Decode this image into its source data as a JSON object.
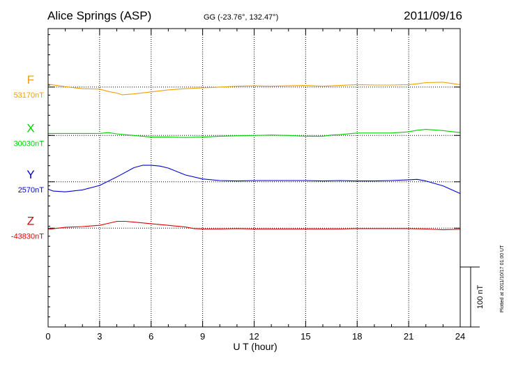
{
  "header": {
    "station": "Alice Springs (ASP)",
    "coords": "GG (-23.76°, 132.47°)",
    "date": "2011/09/16"
  },
  "footer": {
    "plotted": "Plotted at 2011/10/17 01:00 UT"
  },
  "chart_data": {
    "type": "line",
    "xlabel": "U T (hour)",
    "xlim": [
      0,
      24
    ],
    "xticks": [
      0,
      3,
      6,
      9,
      12,
      15,
      18,
      21,
      24
    ],
    "x_minor_step": 1,
    "grid": true,
    "scale": {
      "label": "100 nT",
      "nT": 100
    },
    "y_range_nT": [
      -195,
      545
    ],
    "series": [
      {
        "name": "F",
        "baseline_label": "53170nT",
        "baseline_nT": 53170,
        "offset_nT": 400,
        "color": "#f0a000",
        "x": [
          0,
          1,
          2,
          3,
          3.5,
          4,
          4.3,
          5,
          6,
          7,
          8,
          9,
          10,
          11,
          12,
          13,
          14,
          15,
          16,
          17,
          18,
          19,
          20,
          21,
          21.5,
          22,
          23,
          24
        ],
        "y": [
          53177,
          53171,
          53166,
          53165,
          53159,
          53155,
          53151,
          53153,
          53158,
          53163,
          53166,
          53168,
          53170,
          53172,
          53173,
          53172,
          53173,
          53174,
          53172,
          53174,
          53176,
          53175,
          53175,
          53176,
          53178,
          53181,
          53182,
          53176
        ]
      },
      {
        "name": "X",
        "baseline_label": "30030nT",
        "baseline_nT": 30030,
        "offset_nT": 280,
        "color": "#00d000",
        "x": [
          0,
          1,
          2,
          3,
          3.5,
          4,
          5,
          6,
          7,
          8,
          9,
          10,
          11,
          12,
          13,
          14,
          15,
          16,
          16.5,
          17,
          18,
          19,
          20,
          21,
          21.5,
          22,
          23,
          24
        ],
        "y": [
          30035,
          30035,
          30035,
          30035,
          30037,
          30034,
          30030,
          30026,
          30026,
          30025,
          30026,
          30028,
          30029,
          30030,
          30031,
          30030,
          30028,
          30028,
          30031,
          30032,
          30036,
          30036,
          30036,
          30039,
          30043,
          30045,
          30042,
          30037
        ]
      },
      {
        "name": "Y",
        "baseline_label": "2570nT",
        "baseline_nT": 2570,
        "offset_nT": 165,
        "color": "#0000d0",
        "x": [
          0,
          0.3,
          1,
          2,
          3,
          4,
          5,
          5.5,
          6,
          6.5,
          7,
          8,
          9,
          10,
          11,
          12,
          13,
          14,
          15,
          16,
          17,
          18,
          19,
          20,
          21,
          21.5,
          22,
          23,
          24
        ],
        "y": [
          2552,
          2547,
          2545,
          2550,
          2561,
          2582,
          2605,
          2611,
          2611,
          2609,
          2604,
          2587,
          2577,
          2573,
          2572,
          2573,
          2573,
          2573,
          2573,
          2572,
          2573,
          2572,
          2572,
          2573,
          2575,
          2576,
          2572,
          2560,
          2541
        ]
      },
      {
        "name": "Z",
        "baseline_label": "-43830nT",
        "baseline_nT": -43830,
        "offset_nT": 50,
        "color": "#e00000",
        "x": [
          0,
          1,
          2,
          3,
          3.5,
          4,
          4.5,
          5,
          6,
          7,
          8,
          8.5,
          9,
          10,
          11,
          12,
          13,
          14,
          15,
          16,
          17,
          18,
          19,
          20,
          21,
          22,
          23,
          24
        ],
        "y": [
          -43833,
          -43828,
          -43826,
          -43823,
          -43818,
          -43813,
          -43813,
          -43815,
          -43819,
          -43823,
          -43827,
          -43831,
          -43832,
          -43832,
          -43831,
          -43832,
          -43832,
          -43832,
          -43832,
          -43832,
          -43832,
          -43831,
          -43831,
          -43831,
          -43831,
          -43832,
          -43834,
          -43833
        ]
      }
    ]
  }
}
